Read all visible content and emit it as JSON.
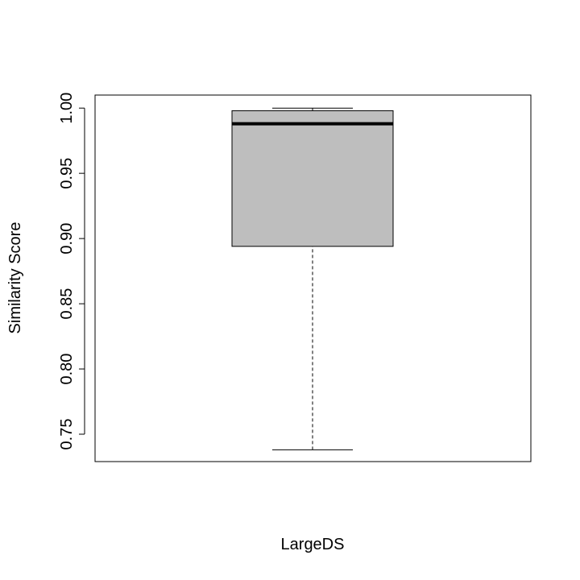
{
  "chart_data": {
    "type": "box",
    "xlabel": "LargeDS",
    "ylabel": "Similarity Score",
    "ylim": [
      0.729,
      1.01
    ],
    "yticks": [
      0.75,
      0.8,
      0.85,
      0.9,
      0.95,
      1.0
    ],
    "ytick_labels": [
      "0.75",
      "0.80",
      "0.85",
      "0.90",
      "0.95",
      "1.00"
    ],
    "box": {
      "whisker_low": 0.738,
      "q1": 0.894,
      "median": 0.988,
      "q3": 0.998,
      "whisker_high": 1.0
    },
    "grid": false,
    "box_color": "#bebebe"
  }
}
